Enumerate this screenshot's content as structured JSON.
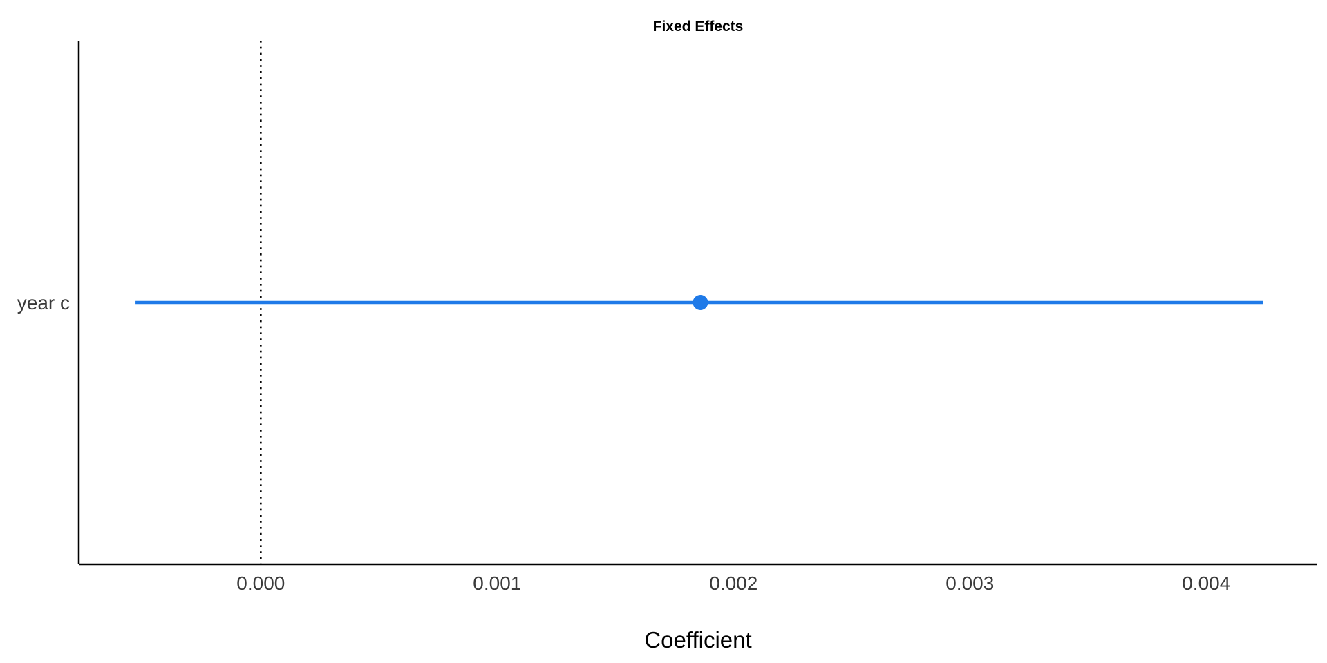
{
  "chart_data": {
    "type": "forest",
    "title": "Fixed Effects",
    "xlabel": "Coefficient",
    "ylabel": "",
    "xlim": [
      -0.00077,
      0.00447
    ],
    "x_ticks": [
      0.0,
      0.001,
      0.002,
      0.003,
      0.004
    ],
    "x_tick_labels": [
      "0.000",
      "0.001",
      "0.002",
      "0.003",
      "0.004"
    ],
    "reference_line": 0,
    "grid": false,
    "legend": "none",
    "colors": {
      "estimate": "#1f7ae8",
      "reference": "#000000",
      "axis": "#000000"
    },
    "terms": [
      {
        "label": "year c",
        "estimate": 0.00186,
        "conf_low": -0.00053,
        "conf_high": 0.00424
      }
    ]
  }
}
